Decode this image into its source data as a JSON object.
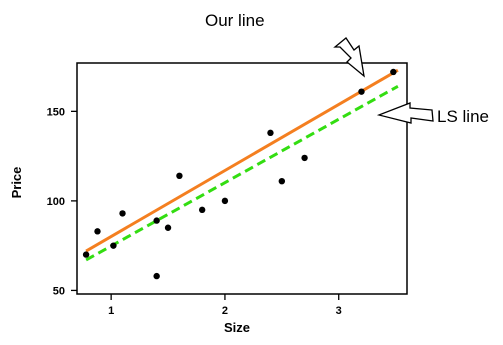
{
  "chart_data": {
    "type": "scatter",
    "xlabel": "Size",
    "ylabel": "Price",
    "xlim": [
      0.7,
      3.6
    ],
    "ylim": [
      48,
      177
    ],
    "x_ticks": [
      1,
      2,
      3
    ],
    "y_ticks": [
      50,
      100,
      150
    ],
    "grid": false,
    "points": [
      {
        "x": 0.78,
        "y": 70
      },
      {
        "x": 0.88,
        "y": 83
      },
      {
        "x": 1.02,
        "y": 75
      },
      {
        "x": 1.1,
        "y": 93
      },
      {
        "x": 1.4,
        "y": 89
      },
      {
        "x": 1.4,
        "y": 58
      },
      {
        "x": 1.5,
        "y": 85
      },
      {
        "x": 1.6,
        "y": 114
      },
      {
        "x": 1.8,
        "y": 95
      },
      {
        "x": 2.0,
        "y": 100
      },
      {
        "x": 2.4,
        "y": 138
      },
      {
        "x": 2.5,
        "y": 111
      },
      {
        "x": 2.7,
        "y": 124
      },
      {
        "x": 3.2,
        "y": 161
      },
      {
        "x": 3.48,
        "y": 172
      }
    ],
    "lines": [
      {
        "name": "Our line",
        "color": "#f47f20",
        "style": "solid",
        "x": [
          0.78,
          3.52
        ],
        "y": [
          72,
          173
        ]
      },
      {
        "name": "LS line",
        "color": "#33dd11",
        "style": "dashed",
        "x": [
          0.78,
          3.52
        ],
        "y": [
          67,
          164
        ]
      }
    ],
    "annotations": [
      {
        "text": "Our line",
        "arrow_icon": "hollow-arrow-icon",
        "points_to": "Our line"
      },
      {
        "text": "LS line",
        "arrow_icon": "hollow-arrow-icon",
        "points_to": "LS line"
      }
    ]
  }
}
